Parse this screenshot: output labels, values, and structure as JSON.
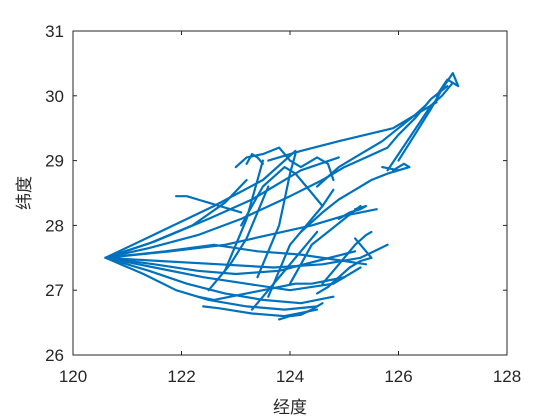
{
  "chart_data": {
    "type": "line",
    "xlabel": "经度",
    "ylabel": "纬度",
    "xlim": [
      120,
      128
    ],
    "ylim": [
      26,
      31
    ],
    "xticks": [
      "120",
      "122",
      "124",
      "126",
      "128"
    ],
    "yticks": [
      "26",
      "27",
      "28",
      "29",
      "30",
      "31"
    ],
    "grid": false,
    "legend": "none",
    "color": "#0072BD",
    "series": [
      {
        "x": [
          120.6,
          121.4,
          122.3,
          123.1,
          124.0,
          124.6
        ],
        "y": [
          27.5,
          27.65,
          27.85,
          28.1,
          28.45,
          28.7
        ]
      },
      {
        "x": [
          120.6,
          121.5,
          122.5,
          123.3,
          124.2,
          124.9
        ],
        "y": [
          27.5,
          27.75,
          28.1,
          28.4,
          28.85,
          29.05
        ]
      },
      {
        "x": [
          120.6,
          121.6,
          122.6,
          123.5,
          124.1
        ],
        "y": [
          27.5,
          27.9,
          28.3,
          28.7,
          29.15
        ]
      },
      {
        "x": [
          120.6,
          121.4,
          122.2,
          122.8,
          123.2
        ],
        "y": [
          27.5,
          27.72,
          28.0,
          28.35,
          28.7
        ]
      },
      {
        "x": [
          120.6,
          121.8,
          122.8,
          123.6,
          124.4,
          125.0,
          125.6
        ],
        "y": [
          27.5,
          27.6,
          27.7,
          27.85,
          28.0,
          28.15,
          28.25
        ]
      },
      {
        "x": [
          120.6,
          121.6,
          122.7,
          123.7,
          124.6,
          125.3,
          125.8
        ],
        "y": [
          27.5,
          27.45,
          27.4,
          27.35,
          27.4,
          27.5,
          27.7
        ]
      },
      {
        "x": [
          120.6,
          121.5,
          122.4,
          123.2,
          124.0,
          124.8,
          125.3
        ],
        "y": [
          27.5,
          27.35,
          27.2,
          27.1,
          27.0,
          27.1,
          27.35
        ]
      },
      {
        "x": [
          120.6,
          121.4,
          122.1,
          122.8,
          123.5,
          124.2,
          124.8
        ],
        "y": [
          27.5,
          27.3,
          27.1,
          26.95,
          26.85,
          26.8,
          26.9
        ]
      },
      {
        "x": [
          120.6,
          121.3,
          121.9,
          122.5,
          123.2,
          123.9,
          124.5
        ],
        "y": [
          27.5,
          27.25,
          27.0,
          26.85,
          26.75,
          26.7,
          26.75
        ]
      },
      {
        "x": [
          120.6,
          121.5,
          122.3,
          123.0,
          123.8,
          124.5,
          125.2
        ],
        "y": [
          27.5,
          27.4,
          27.3,
          27.25,
          27.3,
          27.45,
          27.6
        ]
      },
      {
        "x": [
          120.6,
          121.7,
          122.6,
          123.4,
          124.2,
          125.0,
          125.4
        ],
        "y": [
          27.5,
          27.6,
          27.7,
          27.6,
          27.55,
          27.45,
          27.4
        ]
      },
      {
        "x": [
          123.0,
          123.2,
          123.5,
          123.8,
          124.0,
          124.2,
          124.5,
          124.7,
          124.8
        ],
        "y": [
          28.9,
          29.05,
          29.1,
          29.2,
          29.0,
          28.9,
          29.05,
          28.95,
          28.7
        ]
      },
      {
        "x": [
          123.1,
          123.3,
          123.5,
          123.7,
          123.9,
          124.1,
          124.3,
          124.6
        ],
        "y": [
          28.0,
          28.3,
          28.6,
          28.75,
          28.9,
          28.8,
          28.6,
          28.3
        ]
      },
      {
        "x": [
          123.4,
          123.6,
          123.8,
          123.9,
          124.0,
          124.1
        ],
        "y": [
          27.2,
          27.6,
          28.0,
          28.4,
          28.8,
          29.1
        ]
      },
      {
        "x": [
          122.8,
          123.0,
          123.2,
          123.3,
          123.4,
          123.5
        ],
        "y": [
          27.3,
          27.7,
          28.1,
          28.4,
          28.7,
          29.0
        ]
      },
      {
        "x": [
          123.6,
          123.8,
          124.0,
          124.3,
          124.6,
          124.8
        ],
        "y": [
          26.9,
          27.3,
          27.7,
          28.0,
          28.3,
          28.55
        ]
      },
      {
        "x": [
          122.5,
          122.9,
          123.2,
          123.4,
          123.6
        ],
        "y": [
          27.0,
          27.4,
          27.8,
          28.2,
          28.6
        ]
      },
      {
        "x": [
          124.0,
          124.2,
          124.4,
          124.7,
          125.0,
          125.3
        ],
        "y": [
          27.1,
          27.4,
          27.7,
          27.9,
          28.1,
          28.3
        ]
      },
      {
        "x": [
          122.4,
          122.7,
          123.0,
          123.3,
          123.6,
          123.9,
          124.2,
          124.5
        ],
        "y": [
          26.75,
          26.72,
          26.68,
          26.64,
          26.62,
          26.6,
          26.65,
          26.7
        ]
      },
      {
        "x": [
          123.8,
          124.0,
          124.2,
          124.4,
          124.6
        ],
        "y": [
          26.55,
          26.6,
          26.62,
          26.7,
          26.8
        ]
      },
      {
        "x": [
          124.6,
          124.8,
          125.0,
          125.2,
          125.4,
          125.5
        ],
        "y": [
          27.1,
          27.3,
          27.5,
          27.7,
          27.85,
          27.9
        ]
      },
      {
        "x": [
          124.5,
          124.9,
          125.3,
          125.7,
          126.0,
          126.3,
          126.5
        ],
        "y": [
          28.6,
          28.9,
          29.1,
          29.3,
          29.5,
          29.7,
          29.85
        ]
      },
      {
        "x": [
          124.6,
          125.0,
          125.4,
          125.8,
          126.0,
          126.3,
          126.6,
          126.9
        ],
        "y": [
          28.7,
          28.9,
          29.05,
          29.2,
          29.4,
          29.65,
          29.95,
          30.15
        ]
      },
      {
        "x": [
          123.6,
          124.2,
          124.9,
          125.4,
          125.9,
          126.3,
          126.7
        ],
        "y": [
          29.0,
          29.15,
          29.3,
          29.4,
          29.5,
          29.7,
          29.9
        ]
      },
      {
        "x": [
          125.8,
          126.0,
          126.2,
          126.4,
          126.6,
          126.8,
          127.0
        ],
        "y": [
          28.85,
          29.1,
          29.35,
          29.6,
          29.85,
          30.0,
          30.2
        ]
      },
      {
        "x": [
          126.0,
          126.3,
          126.6,
          126.8,
          127.0,
          127.1,
          126.9,
          126.7
        ],
        "y": [
          29.0,
          29.4,
          29.8,
          30.1,
          30.35,
          30.15,
          30.25,
          30.0
        ]
      },
      {
        "x": [
          125.7,
          126.0,
          126.2,
          126.1,
          125.9
        ],
        "y": [
          28.9,
          28.85,
          28.9,
          28.95,
          28.85
        ]
      },
      {
        "x": [
          124.2,
          124.6,
          124.9,
          125.2,
          125.5,
          125.8,
          126.0
        ],
        "y": [
          27.9,
          28.2,
          28.4,
          28.55,
          28.7,
          28.8,
          28.85
        ]
      },
      {
        "x": [
          124.9,
          125.1,
          125.3,
          125.4,
          125.2
        ],
        "y": [
          28.1,
          28.2,
          28.25,
          28.3,
          28.25
        ]
      },
      {
        "x": [
          125.2,
          125.3,
          125.4,
          125.5
        ],
        "y": [
          27.8,
          27.7,
          27.6,
          27.5
        ]
      },
      {
        "x": [
          121.9,
          122.1,
          122.3,
          122.5,
          122.7,
          122.9,
          123.1
        ],
        "y": [
          28.45,
          28.45,
          28.4,
          28.35,
          28.3,
          28.25,
          28.2
        ]
      },
      {
        "x": [
          123.2,
          123.3,
          123.4,
          123.5
        ],
        "y": [
          28.95,
          29.1,
          29.05,
          28.95
        ]
      },
      {
        "x": [
          122.3,
          122.6,
          122.9,
          123.2,
          123.5,
          123.8,
          124.1,
          124.4,
          124.7,
          125.0
        ],
        "y": [
          26.9,
          26.85,
          26.9,
          26.95,
          27.0,
          27.05,
          27.1,
          27.1,
          27.15,
          27.2
        ]
      },
      {
        "x": [
          123.3,
          123.5,
          123.7,
          123.9,
          124.1,
          124.3,
          124.5
        ],
        "y": [
          26.7,
          26.9,
          27.1,
          27.3,
          27.5,
          27.7,
          27.9
        ]
      },
      {
        "x": [
          124.5,
          124.7,
          124.9,
          125.1,
          125.3,
          125.5
        ],
        "y": [
          26.95,
          27.05,
          27.2,
          27.35,
          27.45,
          27.5
        ]
      }
    ]
  }
}
